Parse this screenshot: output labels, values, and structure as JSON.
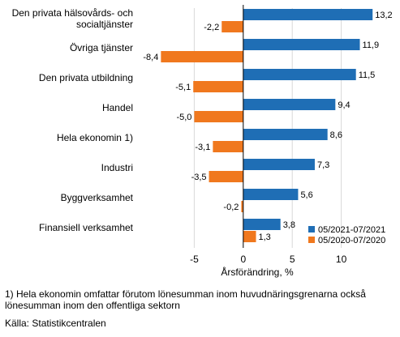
{
  "chart_data": {
    "type": "bar",
    "orientation": "horizontal",
    "categories": [
      "Den privata hälsovårds- och socialtjänster",
      "Övriga tjänster",
      "Den privata utbildning",
      "Handel",
      "Hela ekonomin 1)",
      "Industri",
      "Byggverksamhet",
      "Finansiell verksamhet"
    ],
    "series": [
      {
        "name": "05/2021-07/2021",
        "color": "#1f6eb5",
        "values": [
          13.2,
          11.9,
          11.5,
          9.4,
          8.6,
          7.3,
          5.6,
          3.8
        ],
        "labels": [
          "13,2",
          "11,9",
          "11,5",
          "9,4",
          "8,6",
          "7,3",
          "5,6",
          "3,8"
        ]
      },
      {
        "name": "05/2020-07/2020",
        "color": "#f0781e",
        "values": [
          -2.2,
          -8.4,
          -5.1,
          -5.0,
          -3.1,
          -3.5,
          -0.2,
          1.3
        ],
        "labels": [
          "-2,2",
          "-8,4",
          "-5,1",
          "-5,0",
          "-3,1",
          "-3,5",
          "-0,2",
          "1,3"
        ]
      }
    ],
    "xlabel": "Årsförändring, %",
    "xlim": [
      -10.5,
      15.5
    ],
    "xticks": [
      -5,
      0,
      5,
      10
    ],
    "xtick_labels": [
      "-5",
      "0",
      "5",
      "10"
    ],
    "grid": "vertical",
    "legend_position": "bottom-right"
  },
  "footnote": {
    "line1": "1) Hela ekonomin omfattar förutom lönesumman inom huvudnäringsgrenarna också",
    "line2": "lönesumman inom den offentliga sektorn",
    "source": "Källa: Statistikcentralen"
  }
}
